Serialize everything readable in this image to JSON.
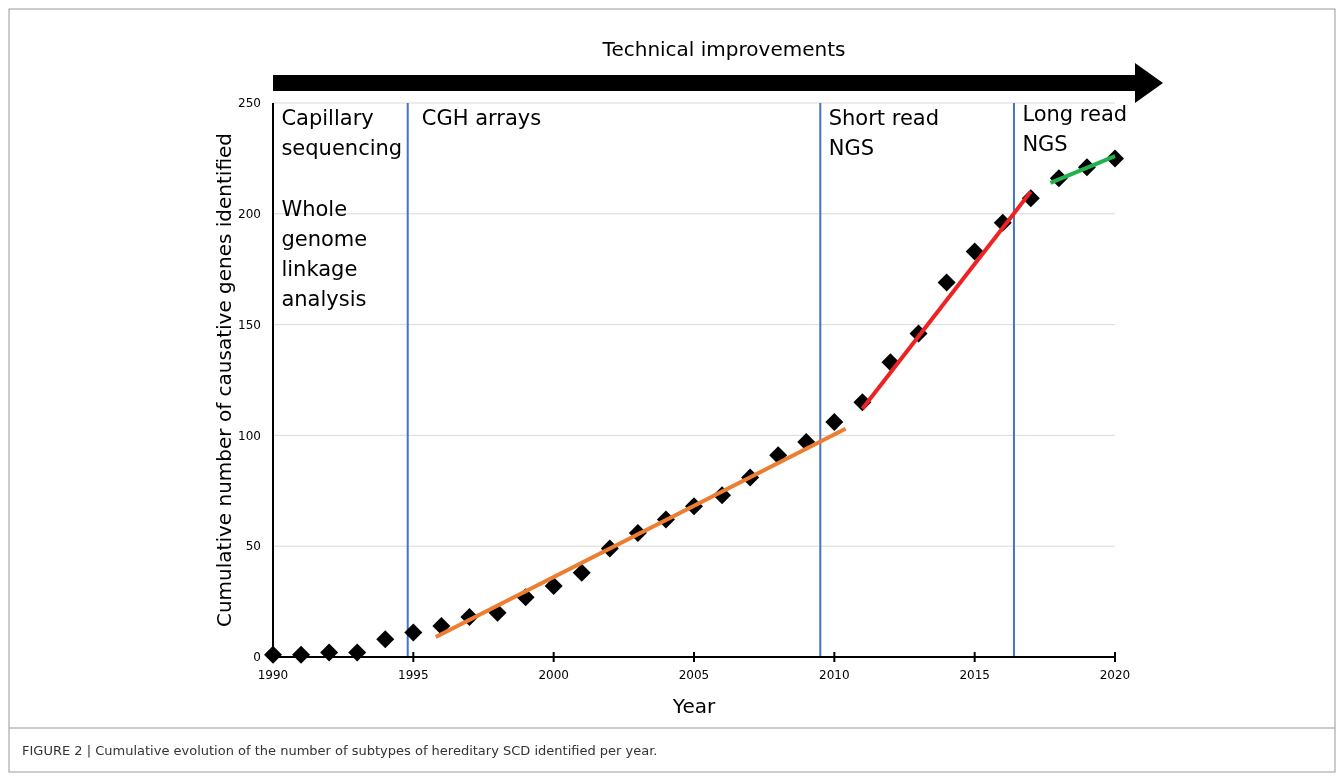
{
  "chart_data": {
    "type": "scatter",
    "xlabel": "Year",
    "ylabel": "Cumulative number of causative genes identified",
    "xlim": [
      1990,
      2020
    ],
    "xticks": [
      1990,
      1995,
      2000,
      2005,
      2010,
      2015,
      2020
    ],
    "ylim": [
      0,
      250
    ],
    "yticks": [
      0,
      50,
      100,
      150,
      200,
      250
    ],
    "grid": "y",
    "series": [
      {
        "color": "#000000",
        "marker": "diamond",
        "x": [
          1990,
          1991,
          1992,
          1993,
          1994,
          1995,
          1996,
          1997,
          1998,
          1999,
          2000,
          2001,
          2002,
          2003,
          2004,
          2005,
          2006,
          2007,
          2008,
          2009,
          2010,
          2011,
          2012,
          2013,
          2014,
          2015,
          2016,
          2017,
          2018,
          2019,
          2020
        ],
        "values": [
          1,
          1,
          2,
          2,
          8,
          11,
          14,
          18,
          20,
          27,
          32,
          38,
          49,
          56,
          62,
          68,
          73,
          81,
          91,
          97,
          106,
          115,
          133,
          146,
          169,
          183,
          196,
          207,
          216,
          221,
          225
        ]
      },
      {
        "type": "line",
        "color": "#ed7d31",
        "x": [
          1995.8,
          2010.4
        ],
        "values": [
          9,
          103
        ]
      },
      {
        "type": "line",
        "color": "#ee2222",
        "x": [
          2011,
          2017
        ],
        "values": [
          112,
          210
        ]
      },
      {
        "type": "line",
        "color": "#22b14c",
        "x": [
          2017.7,
          2020
        ],
        "values": [
          214,
          226
        ]
      }
    ],
    "ref_lines": [
      {
        "axis": "x",
        "value": 1994.8,
        "color": "#4472c4"
      },
      {
        "axis": "x",
        "value": 2009.5,
        "color": "#4472c4"
      },
      {
        "axis": "x",
        "value": 2016.4,
        "color": "#4472c4"
      }
    ],
    "annotations": [
      "Capillary\nsequencing",
      "Whole\ngenome\nlinkage\nanalysis",
      "CGH arrays",
      "Short read\nNGS",
      "Long read\nNGS",
      "Technical improvements",
      "FIGURE 2 | Cumulative evolution of the number of subtypes of hereditary SCD identified per year."
    ]
  }
}
